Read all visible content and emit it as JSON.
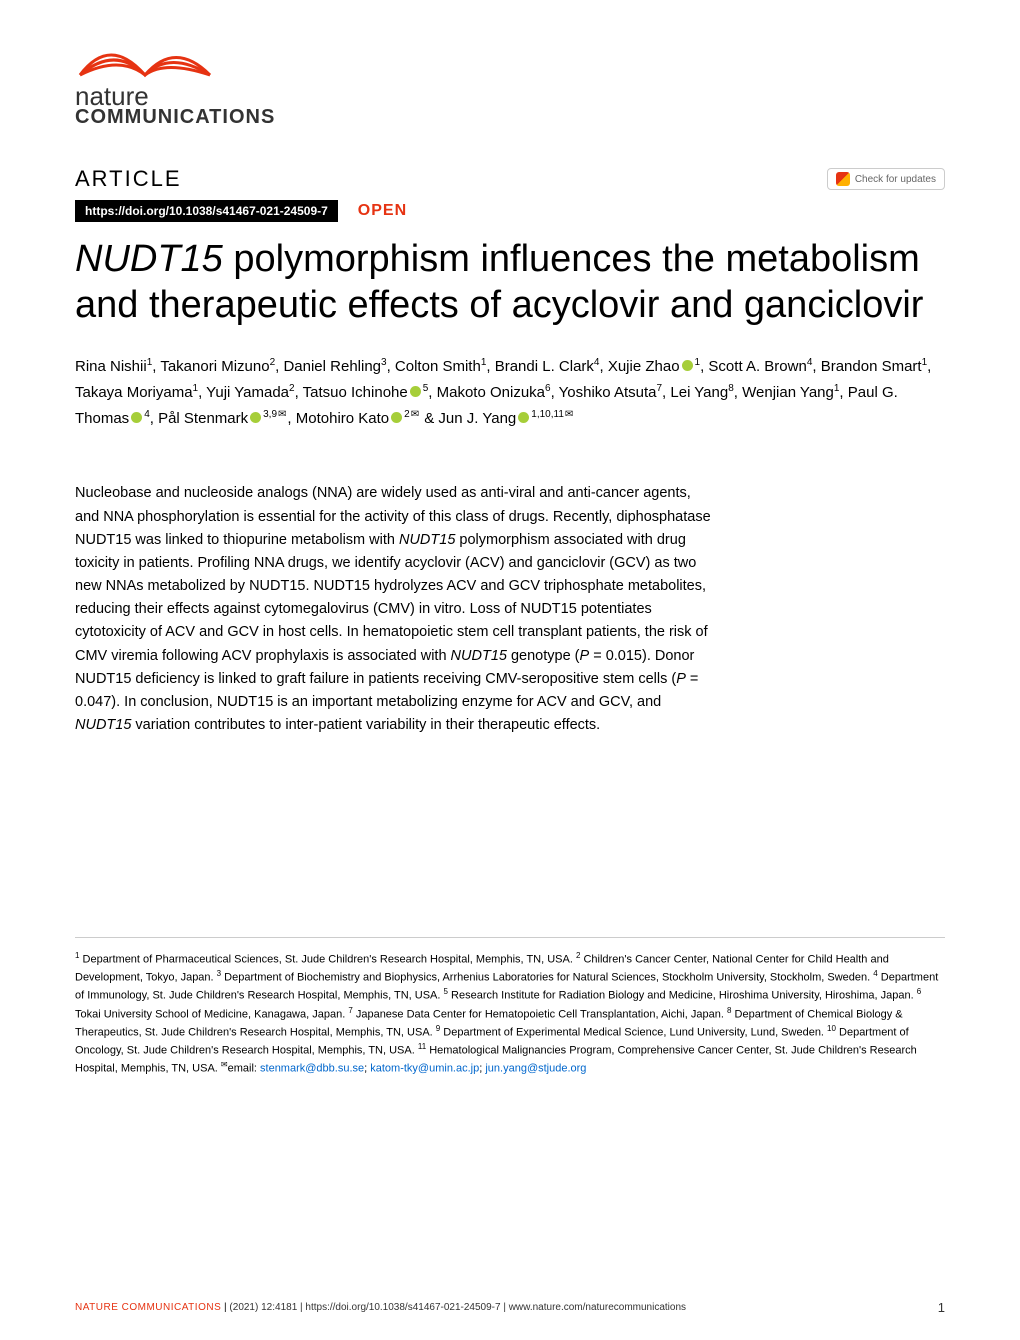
{
  "journal": {
    "logo_line1": "nature",
    "logo_line2": "COMMUNICATIONS"
  },
  "article_label": "ARTICLE",
  "check_updates_text": "Check for updates",
  "doi": "https://doi.org/10.1038/s41467-021-24509-7",
  "open_label": "OPEN",
  "title_prefix_italic": "NUDT15",
  "title_rest": " polymorphism influences the metabolism and therapeutic effects of acyclovir and ganciclovir",
  "authors_html": "Rina Nishii<sup>1</sup>, Takanori Mizuno<sup>2</sup>, Daniel Rehling<sup>3</sup>, Colton Smith<sup>1</sup>, Brandi L. Clark<sup>4</sup>, Xujie Zhao<span class='orcid-icon' data-name='orcid-icon'></span><sup>1</sup>, Scott A. Brown<sup>4</sup>, Brandon Smart<sup>1</sup>, Takaya Moriyama<sup>1</sup>, Yuji Yamada<sup>2</sup>, Tatsuo Ichinohe<span class='orcid-icon' data-name='orcid-icon'></span><sup>5</sup>, Makoto Onizuka<sup>6</sup>, Yoshiko Atsuta<sup>7</sup>, Lei Yang<sup>8</sup>, Wenjian Yang<sup>1</sup>, Paul G. Thomas<span class='orcid-icon' data-name='orcid-icon'></span><sup>4</sup>, Pål Stenmark<span class='orcid-icon' data-name='orcid-icon'></span><sup>3,9</sup><span class='envelope-icon' data-name='envelope-icon'>✉</span>, Motohiro Kato<span class='orcid-icon' data-name='orcid-icon'></span><sup>2</sup><span class='envelope-icon' data-name='envelope-icon'>✉</span> &amp; Jun J. Yang<span class='orcid-icon' data-name='orcid-icon'></span><sup>1,10,11</sup><span class='envelope-icon' data-name='envelope-icon'>✉</span>",
  "abstract_html": "Nucleobase and nucleoside analogs (NNA) are widely used as anti-viral and anti-cancer agents, and NNA phosphorylation is essential for the activity of this class of drugs. Recently, diphosphatase NUDT15 was linked to thiopurine metabolism with <span class='italic'>NUDT15</span> polymorphism associated with drug toxicity in patients. Profiling NNA drugs, we identify acyclovir (ACV) and ganciclovir (GCV) as two new NNAs metabolized by NUDT15. NUDT15 hydrolyzes ACV and GCV triphosphate metabolites, reducing their effects against cytomegalovirus (CMV) in vitro. Loss of NUDT15 potentiates cytotoxicity of ACV and GCV in host cells. In hematopoietic stem cell transplant patients, the risk of CMV viremia following ACV prophylaxis is associated with <span class='italic'>NUDT15</span> genotype (<span class='italic'>P</span> = 0.015). Donor NUDT15 deficiency is linked to graft failure in patients receiving CMV-seropositive stem cells (<span class='italic'>P</span> = 0.047). In conclusion, NUDT15 is an important metabolizing enzyme for ACV and GCV, and <span class='italic'>NUDT15</span> variation contributes to inter-patient variability in their therapeutic effects.",
  "affiliations_html": "<sup>1</sup> Department of Pharmaceutical Sciences, St. Jude Children's Research Hospital, Memphis, TN, USA. <sup>2</sup> Children's Cancer Center, National Center for Child Health and Development, Tokyo, Japan. <sup>3</sup> Department of Biochemistry and Biophysics, Arrhenius Laboratories for Natural Sciences, Stockholm University, Stockholm, Sweden. <sup>4</sup> Department of Immunology, St. Jude Children's Research Hospital, Memphis, TN, USA. <sup>5</sup> Research Institute for Radiation Biology and Medicine, Hiroshima University, Hiroshima, Japan. <sup>6</sup> Tokai University School of Medicine, Kanagawa, Japan. <sup>7</sup> Japanese Data Center for Hematopoietic Cell Transplantation, Aichi, Japan. <sup>8</sup> Department of Chemical Biology &amp; Therapeutics, St. Jude Children's Research Hospital, Memphis, TN, USA. <sup>9</sup> Department of Experimental Medical Science, Lund University, Lund, Sweden. <sup>10</sup> Department of Oncology, St. Jude Children's Research Hospital, Memphis, TN, USA. <sup>11</sup> Hematological Malignancies Program, Comprehensive Cancer Center, St. Jude Children's Research Hospital, Memphis, TN, USA. <sup>✉</sup>email: <span class='email-link'>stenmark@dbb.su.se</span>; <span class='email-link'>katom-tky@umin.ac.jp</span>; <span class='email-link'>jun.yang@stjude.org</span>",
  "footer": {
    "journal": "NATURE COMMUNICATIONS",
    "citation": "(2021) 12:4181 | https://doi.org/10.1038/s41467-021-24509-7 | www.nature.com/naturecommunications",
    "page": "1"
  },
  "colors": {
    "accent_red": "#e63312",
    "orcid_green": "#a6ce39",
    "link_blue": "#0066cc",
    "text_black": "#000000",
    "text_gray": "#333333",
    "background": "#ffffff"
  },
  "typography": {
    "title_fontsize": 38,
    "title_weight": 300,
    "authors_fontsize": 15,
    "abstract_fontsize": 14.5,
    "affiliations_fontsize": 11,
    "article_label_fontsize": 22,
    "footer_fontsize": 10
  }
}
